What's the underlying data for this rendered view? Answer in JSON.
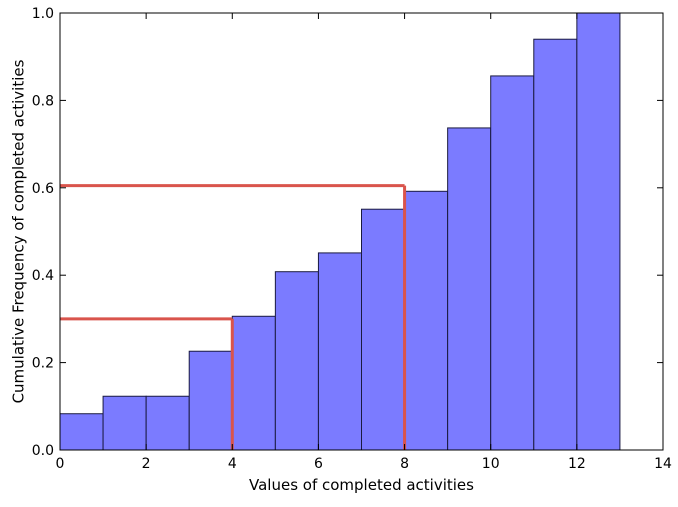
{
  "chart_data": {
    "type": "bar",
    "variant": "cumulative-histogram",
    "title": "",
    "xlabel": "Values of completed activities",
    "ylabel": "Cumulative Frequency of completed activities",
    "xlim": [
      0,
      14
    ],
    "ylim": [
      0,
      1.0
    ],
    "xticks": [
      0,
      2,
      4,
      6,
      8,
      10,
      12,
      14
    ],
    "yticks": [
      0.0,
      0.2,
      0.4,
      0.6,
      0.8,
      1.0
    ],
    "xtick_labels": [
      "0",
      "2",
      "4",
      "6",
      "8",
      "10",
      "12",
      "14"
    ],
    "ytick_labels": [
      "0.0",
      "0.2",
      "0.4",
      "0.6",
      "0.8",
      "1.0"
    ],
    "bins": [
      {
        "x0": 0,
        "x1": 1,
        "value": 0.083
      },
      {
        "x0": 1,
        "x1": 2,
        "value": 0.123
      },
      {
        "x0": 2,
        "x1": 3,
        "value": 0.123
      },
      {
        "x0": 3,
        "x1": 4,
        "value": 0.226
      },
      {
        "x0": 4,
        "x1": 5,
        "value": 0.306
      },
      {
        "x0": 5,
        "x1": 6,
        "value": 0.408
      },
      {
        "x0": 6,
        "x1": 7,
        "value": 0.451
      },
      {
        "x0": 7,
        "x1": 8,
        "value": 0.551
      },
      {
        "x0": 8,
        "x1": 9,
        "value": 0.592
      },
      {
        "x0": 9,
        "x1": 10,
        "value": 0.737
      },
      {
        "x0": 10,
        "x1": 11,
        "value": 0.856
      },
      {
        "x0": 11,
        "x1": 12,
        "value": 0.94
      },
      {
        "x0": 12,
        "x1": 13,
        "value": 1.0
      }
    ],
    "reference_lines": [
      {
        "x": 4,
        "y": 0.3
      },
      {
        "x": 8,
        "y": 0.605
      }
    ],
    "grid": false,
    "legend": "none",
    "colors": {
      "bar_fill": "#7b7bff",
      "bar_edge": "#1a1a40",
      "reference": "#d9544c",
      "axis": "#000000"
    }
  }
}
